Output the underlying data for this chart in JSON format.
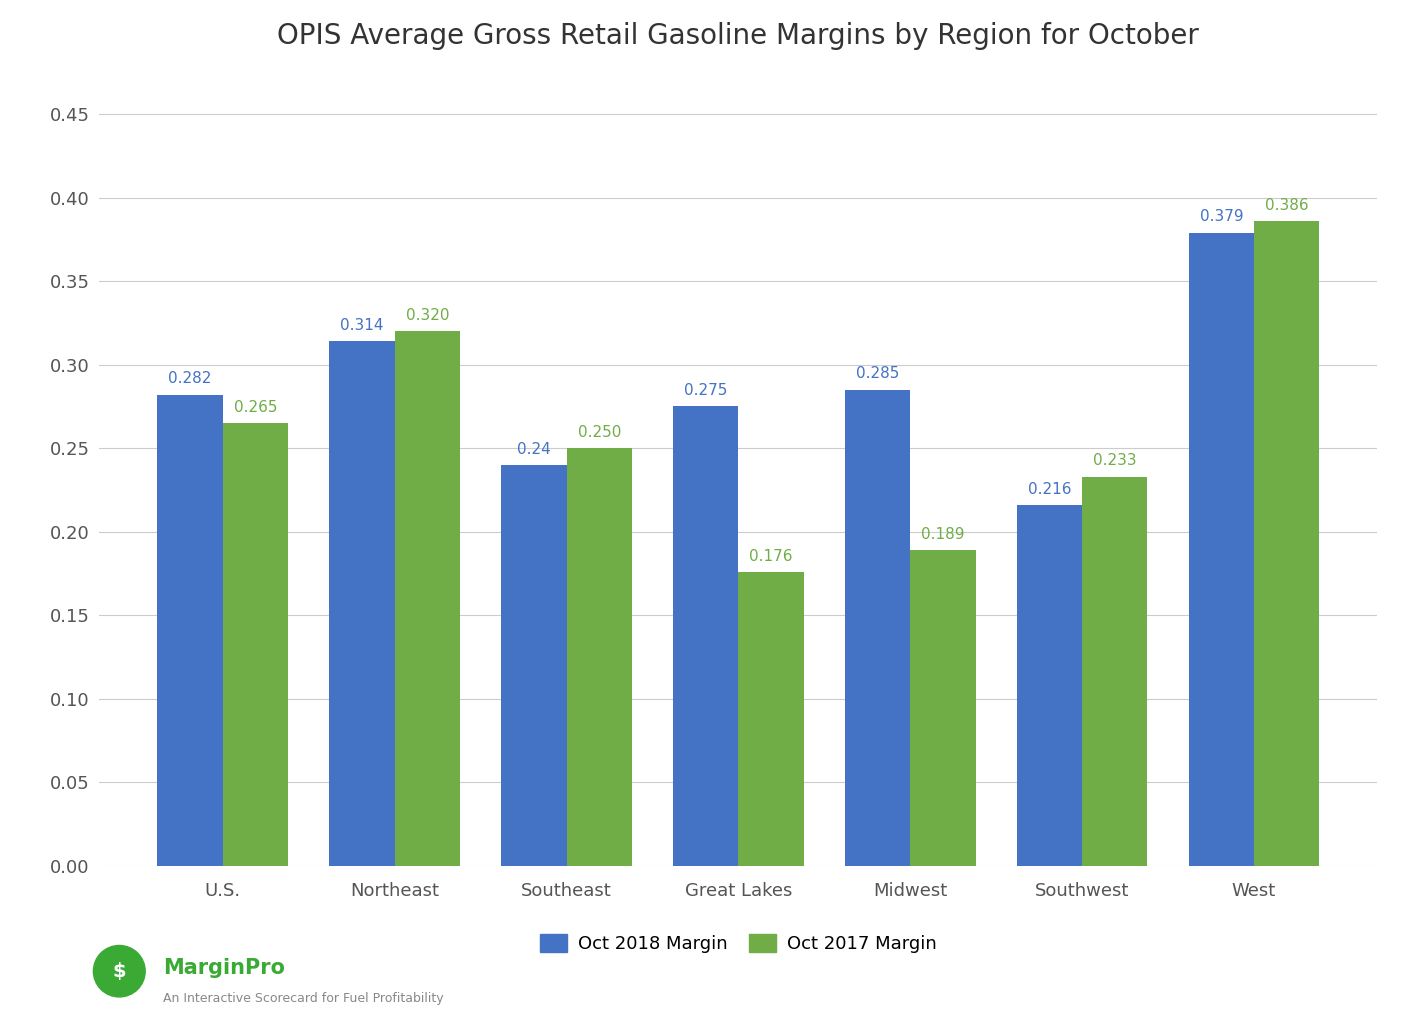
{
  "title": "OPIS Average Gross Retail Gasoline Margins by Region for October",
  "categories": [
    "U.S.",
    "Northeast",
    "Southeast",
    "Great Lakes",
    "Midwest",
    "Southwest",
    "West"
  ],
  "oct2018": [
    0.282,
    0.314,
    0.24,
    0.275,
    0.285,
    0.216,
    0.379
  ],
  "oct2017": [
    0.265,
    0.32,
    0.25,
    0.176,
    0.189,
    0.233,
    0.386
  ],
  "oct2018_labels": [
    "0.282",
    "0.314",
    "0.24",
    "0.275",
    "0.285",
    "0.216",
    "0.379"
  ],
  "oct2017_labels": [
    "0.265",
    "0.320",
    "0.250",
    "0.176",
    "0.189",
    "0.233",
    "0.386"
  ],
  "bar_color_2018": "#4472C4",
  "bar_color_2017": "#70AD47",
  "ylim": [
    0.0,
    0.475
  ],
  "yticks": [
    0.0,
    0.05,
    0.1,
    0.15,
    0.2,
    0.25,
    0.3,
    0.35,
    0.4,
    0.45
  ],
  "legend_2018": "Oct 2018 Margin",
  "legend_2017": "Oct 2017 Margin",
  "title_fontsize": 20,
  "label_fontsize": 11,
  "tick_fontsize": 13,
  "legend_fontsize": 13,
  "background_color": "#FFFFFF",
  "grid_color": "#CCCCCC",
  "marginpro_text": "MarginPro",
  "marginpro_sub": "An Interactive Scorecard for Fuel Profitability",
  "bar_width": 0.38
}
